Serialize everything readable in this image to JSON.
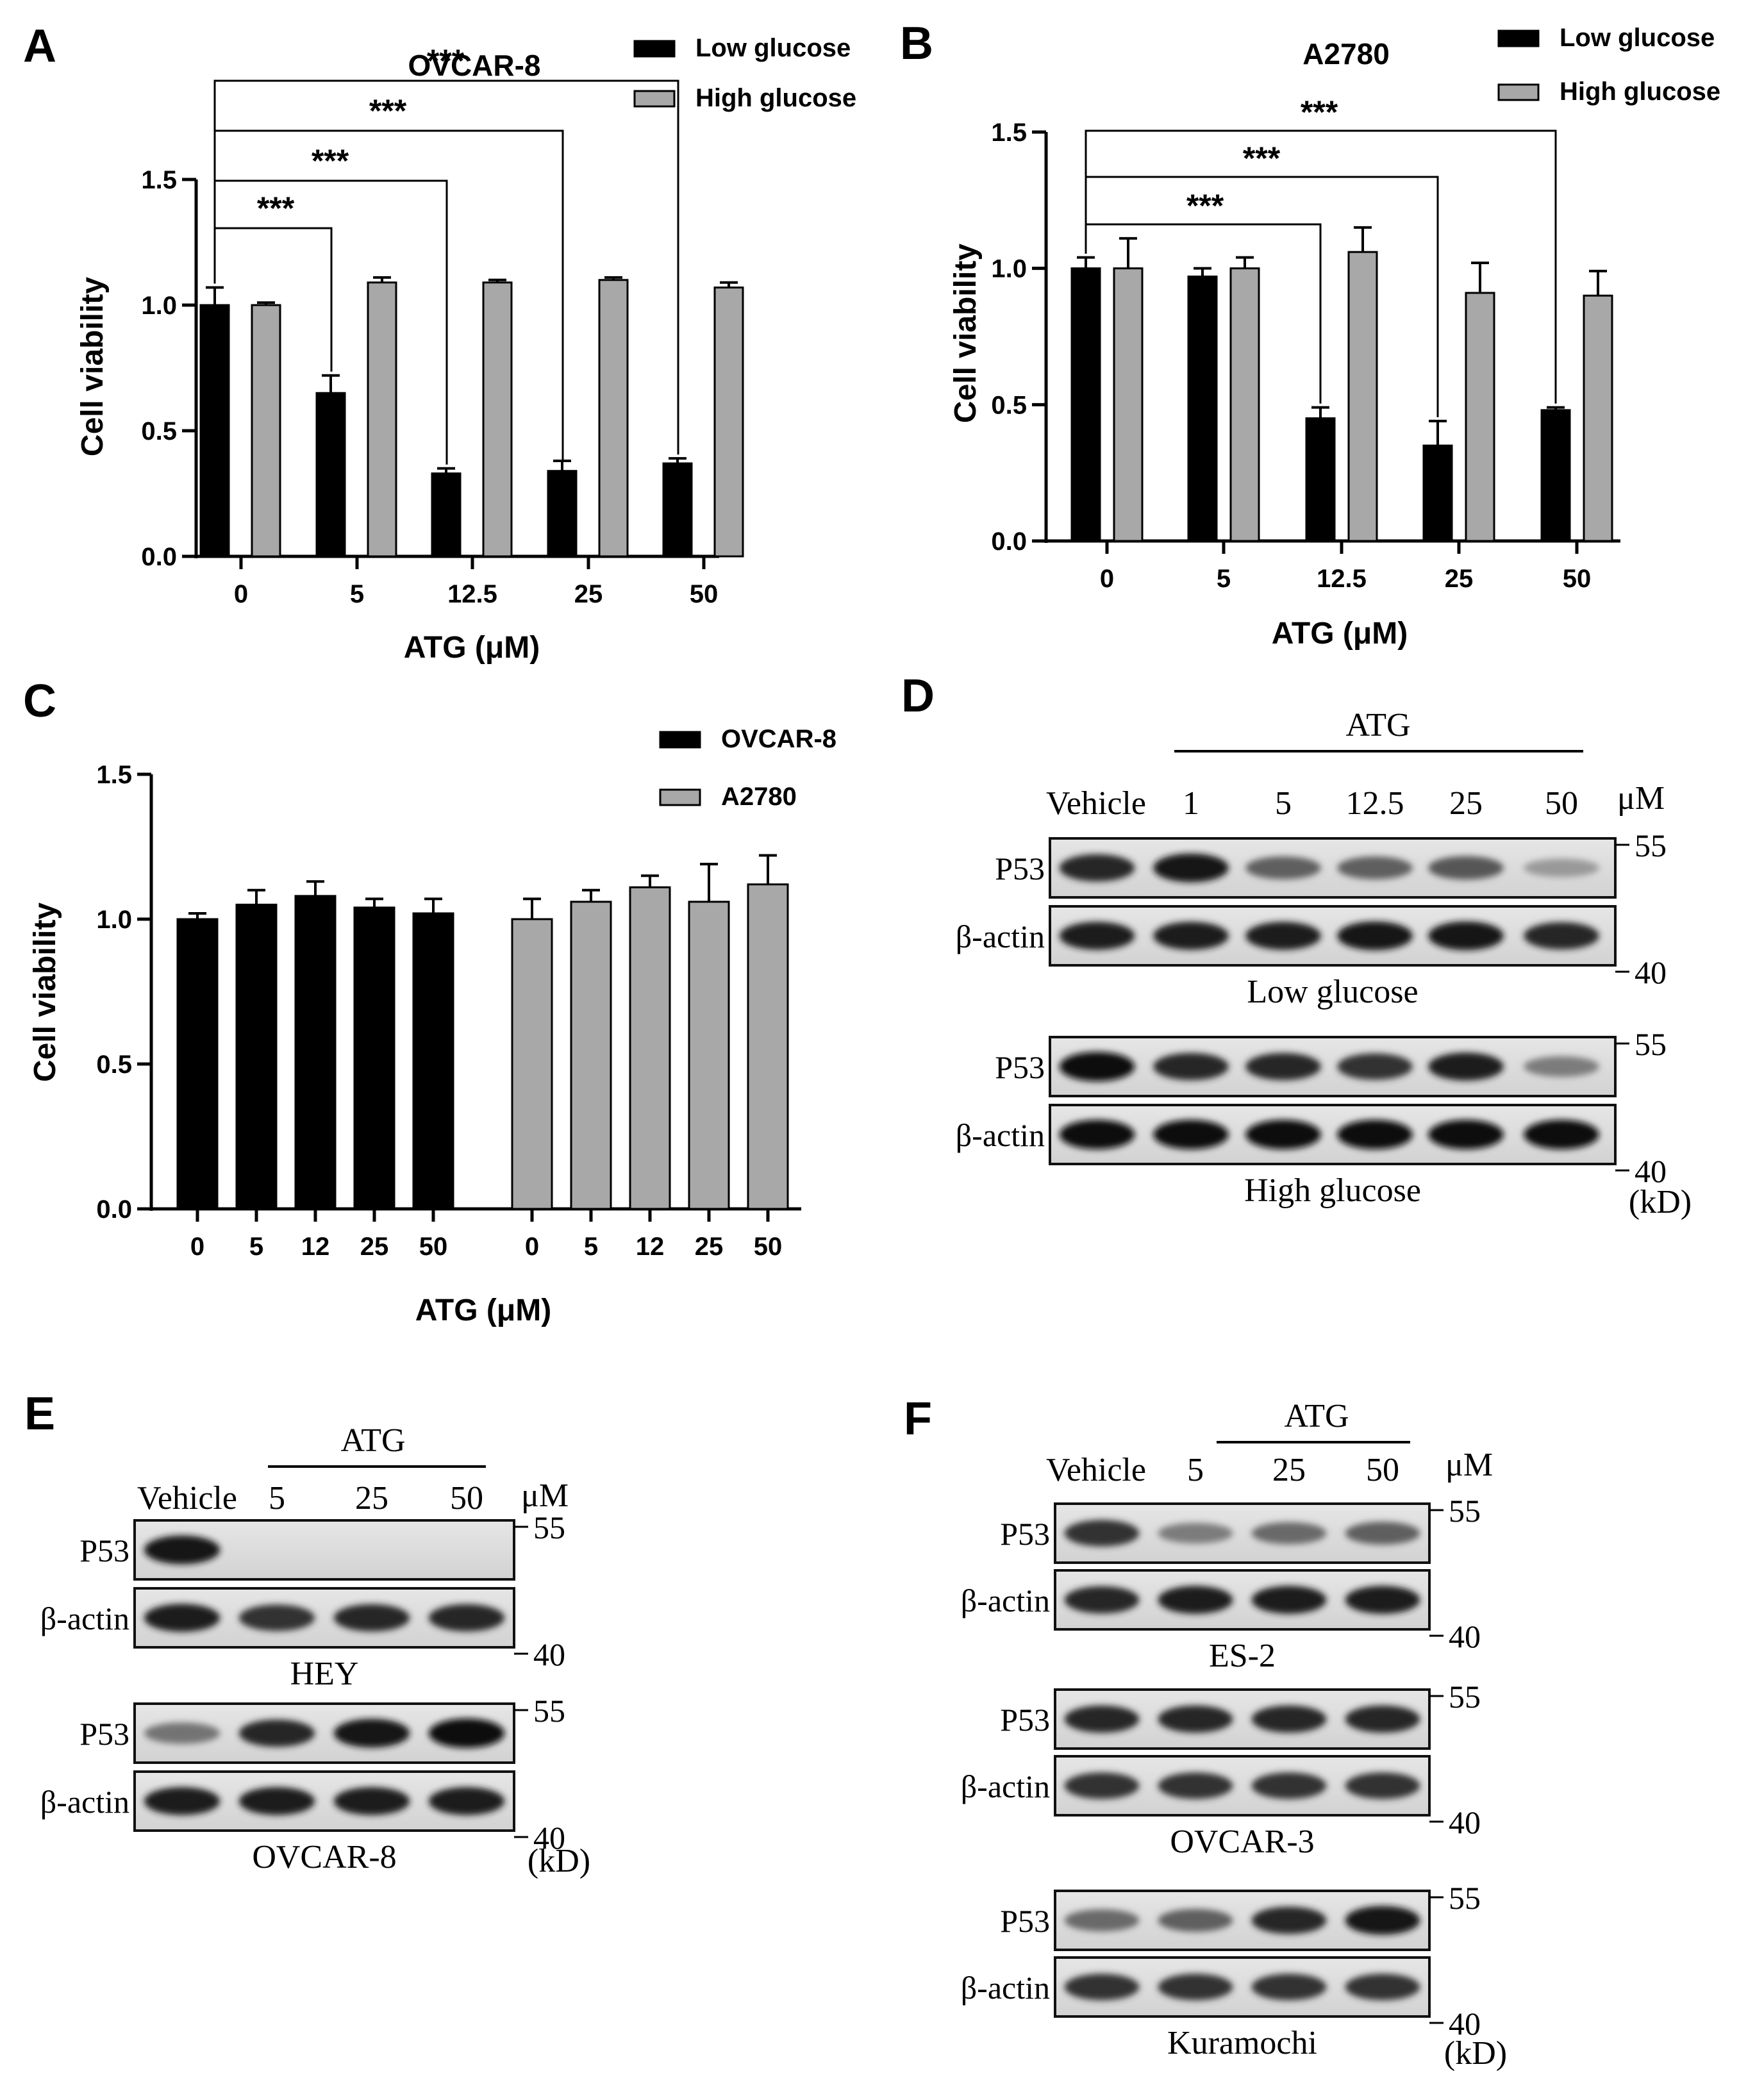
{
  "panel_letters": [
    "A",
    "B",
    "C",
    "D",
    "E",
    "F"
  ],
  "chart_data": [
    {
      "panel": "A",
      "type": "bar",
      "title": "OVCAR-8",
      "xlabel": "ATG (μM)",
      "ylabel": "Cell viability",
      "categories": [
        "0",
        "5",
        "12.5",
        "25",
        "50"
      ],
      "series": [
        {
          "name": "Low glucose",
          "color": "#000000",
          "values": [
            1.0,
            0.65,
            0.33,
            0.34,
            0.37
          ],
          "errors": [
            0.07,
            0.07,
            0.02,
            0.04,
            0.02
          ]
        },
        {
          "name": "High glucose",
          "color": "#a8a8a8",
          "values": [
            1.0,
            1.09,
            1.09,
            1.1,
            1.07
          ],
          "errors": [
            0.01,
            0.02,
            0.01,
            0.01,
            0.02
          ]
        }
      ],
      "yticks": [
        "0.0",
        "0.5",
        "1.0",
        "1.5"
      ],
      "ylim": [
        0,
        1.5
      ],
      "legend_position": "top-right",
      "significance": "***"
    },
    {
      "panel": "B",
      "type": "bar",
      "title": "A2780",
      "xlabel": "ATG (μM)",
      "ylabel": "Cell viability",
      "categories": [
        "0",
        "5",
        "12.5",
        "25",
        "50"
      ],
      "series": [
        {
          "name": "Low glucose",
          "color": "#000000",
          "values": [
            1.0,
            0.97,
            0.45,
            0.35,
            0.48
          ],
          "errors": [
            0.04,
            0.03,
            0.04,
            0.09,
            0.01
          ]
        },
        {
          "name": "High glucose",
          "color": "#a8a8a8",
          "values": [
            1.0,
            1.0,
            1.06,
            0.91,
            0.9
          ],
          "errors": [
            0.11,
            0.04,
            0.09,
            0.11,
            0.09
          ]
        }
      ],
      "yticks": [
        "0.0",
        "0.5",
        "1.0",
        "1.5"
      ],
      "ylim": [
        0,
        1.5
      ],
      "legend_position": "top-right",
      "significance": "***"
    },
    {
      "panel": "C",
      "type": "bar",
      "xlabel": "ATG (μM)",
      "ylabel": "Cell viability",
      "categories": [
        "0",
        "5",
        "12",
        "25",
        "50"
      ],
      "series": [
        {
          "name": "OVCAR-8",
          "color": "#000000",
          "values": [
            1.0,
            1.05,
            1.08,
            1.04,
            1.02
          ],
          "errors": [
            0.02,
            0.05,
            0.05,
            0.03,
            0.05
          ]
        },
        {
          "name": "A2780",
          "color": "#a8a8a8",
          "values": [
            1.0,
            1.06,
            1.11,
            1.06,
            1.12
          ],
          "errors": [
            0.07,
            0.04,
            0.04,
            0.13,
            0.1
          ]
        }
      ],
      "yticks": [
        "0.0",
        "0.5",
        "1.0",
        "1.5"
      ],
      "ylim": [
        0,
        1.5
      ],
      "legend_position": "top-right"
    }
  ],
  "blots": {
    "D": {
      "treatment": "ATG",
      "unit": "μM",
      "lanes": [
        "Vehicle",
        "1",
        "5",
        "12.5",
        "25",
        "50"
      ],
      "kd_label": "(kD)",
      "groups": [
        {
          "label": "Low glucose",
          "rows": [
            {
              "protein": "P53",
              "marker": "55",
              "intensity": [
                0.85,
                0.95,
                0.55,
                0.55,
                0.6,
                0.25
              ]
            },
            {
              "protein": "β-actin",
              "marker": "40",
              "intensity": [
                0.9,
                0.9,
                0.9,
                0.95,
                0.95,
                0.85
              ]
            }
          ]
        },
        {
          "label": "High glucose",
          "rows": [
            {
              "protein": "P53",
              "marker": "55",
              "intensity": [
                1.0,
                0.85,
                0.85,
                0.8,
                0.9,
                0.4
              ]
            },
            {
              "protein": "β-actin",
              "marker": "40",
              "intensity": [
                1.0,
                1.0,
                1.0,
                1.0,
                1.0,
                1.0
              ]
            }
          ]
        }
      ]
    },
    "E": {
      "treatment": "ATG",
      "unit": "μM",
      "lanes": [
        "Vehicle",
        "5",
        "25",
        "50"
      ],
      "kd_label": "(kD)",
      "groups": [
        {
          "label": "HEY",
          "rows": [
            {
              "protein": "P53",
              "marker": "55",
              "intensity": [
                0.95,
                0,
                0,
                0
              ]
            },
            {
              "protein": "β-actin",
              "marker": "40",
              "intensity": [
                0.9,
                0.8,
                0.85,
                0.85
              ]
            }
          ]
        },
        {
          "label": "OVCAR-8",
          "rows": [
            {
              "protein": "P53",
              "marker": "55",
              "intensity": [
                0.45,
                0.85,
                0.95,
                1.0
              ]
            },
            {
              "protein": "β-actin",
              "marker": "40",
              "intensity": [
                0.9,
                0.9,
                0.9,
                0.9
              ]
            }
          ]
        }
      ]
    },
    "F": {
      "treatment": "ATG",
      "unit": "μM",
      "lanes": [
        "Vehicle",
        "5",
        "25",
        "50"
      ],
      "kd_label": "(kD)",
      "groups": [
        {
          "label": "ES-2",
          "rows": [
            {
              "protein": "P53",
              "marker": "55",
              "intensity": [
                0.8,
                0.4,
                0.5,
                0.55
              ]
            },
            {
              "protein": "β-actin",
              "marker": "40",
              "intensity": [
                0.85,
                0.9,
                0.9,
                0.9
              ]
            }
          ]
        },
        {
          "label": "OVCAR-3",
          "rows": [
            {
              "protein": "P53",
              "marker": "55",
              "intensity": [
                0.85,
                0.85,
                0.85,
                0.85
              ]
            },
            {
              "protein": "β-actin",
              "marker": "40",
              "intensity": [
                0.8,
                0.8,
                0.8,
                0.8
              ]
            }
          ]
        },
        {
          "label": "Kuramochi",
          "rows": [
            {
              "protein": "P53",
              "marker": "55",
              "intensity": [
                0.5,
                0.55,
                0.85,
                0.95
              ]
            },
            {
              "protein": "β-actin",
              "marker": "40",
              "intensity": [
                0.8,
                0.8,
                0.8,
                0.8
              ]
            }
          ]
        }
      ]
    }
  }
}
